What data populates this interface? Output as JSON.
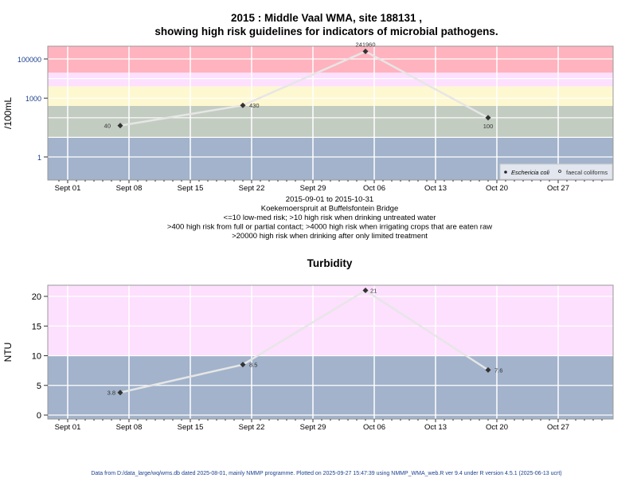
{
  "chart_data": [
    {
      "type": "line",
      "title": "2015 : Middle Vaal WMA, site 188131 ,",
      "subtitle": "showing high risk guidelines for indicators of microbial pathogens.",
      "ylabel": "/100mL",
      "yscale": "log",
      "ylim": [
        0.066,
        450000
      ],
      "yticks": [
        "1",
        "1000",
        "100000"
      ],
      "xticks": [
        "Sept 01",
        "Sept 08",
        "Sept 15",
        "Sept 22",
        "Sept 29",
        "Oct 06",
        "Oct 13",
        "Oct 20",
        "Oct 27"
      ],
      "xlabel_lines": [
        "2015-09-01 to 2015-10-31",
        "Koekemoerspruit at Buffelsfontein Bridge",
        "<=10 low-med risk; >10 high risk when drinking untreated water",
        ">400 high risk from full or partial contact; >4000 high risk when irrigating crops that are eaten raw",
        ">20000 high risk when drinking after only limited treatment"
      ],
      "bands": [
        {
          "from": 0.01,
          "to": 10,
          "color": "#a2b3cb"
        },
        {
          "from": 10,
          "to": 400,
          "color": "#c3ccc1"
        },
        {
          "from": 400,
          "to": 4000,
          "color": "#fdf8d0"
        },
        {
          "from": 4000,
          "to": 20000,
          "color": "#fde0fd"
        },
        {
          "from": 20000,
          "to": 1000000,
          "color": "#ffb3be"
        }
      ],
      "series": [
        {
          "name": "Eschericia coli",
          "x": [
            "2015-09-07",
            "2015-09-21",
            "2015-10-05",
            "2015-10-19"
          ],
          "values": [
            40,
            430,
            241960,
            100
          ],
          "labels": [
            "40",
            "430",
            "241960",
            "100"
          ]
        }
      ],
      "legend": {
        "placement": "bottom-right",
        "entries": [
          "Eschericia coli",
          "faecal coliforms"
        ]
      }
    },
    {
      "type": "line",
      "title": "Turbidity",
      "ylabel": "NTU",
      "ylim": [
        -0.67,
        21.9
      ],
      "yticks": [
        "0",
        "5",
        "10",
        "15",
        "20"
      ],
      "xticks": [
        "Sept 01",
        "Sept 08",
        "Sept 15",
        "Sept 22",
        "Sept 29",
        "Oct 06",
        "Oct 13",
        "Oct 20",
        "Oct 27"
      ],
      "bands": [
        {
          "from": -5,
          "to": 10,
          "color": "#a2b3cb"
        },
        {
          "from": 10,
          "to": 30,
          "color": "#fde0fd"
        }
      ],
      "series": [
        {
          "name": "Turbidity",
          "x": [
            "2015-09-07",
            "2015-09-21",
            "2015-10-05",
            "2015-10-19"
          ],
          "values": [
            3.8,
            8.5,
            21,
            7.6
          ],
          "labels": [
            "3.8",
            "8.5",
            "21",
            "7.6"
          ]
        }
      ]
    }
  ],
  "footer": "Data from D:/data_large/wq/wms.db dated 2025-08-01, mainly NMMP programme. Plotted on 2025-09-27 15:47:39 using NMMP_WMA_web.R ver 9.4 under R version 4.5.1 (2025-06-13 ucrt)"
}
